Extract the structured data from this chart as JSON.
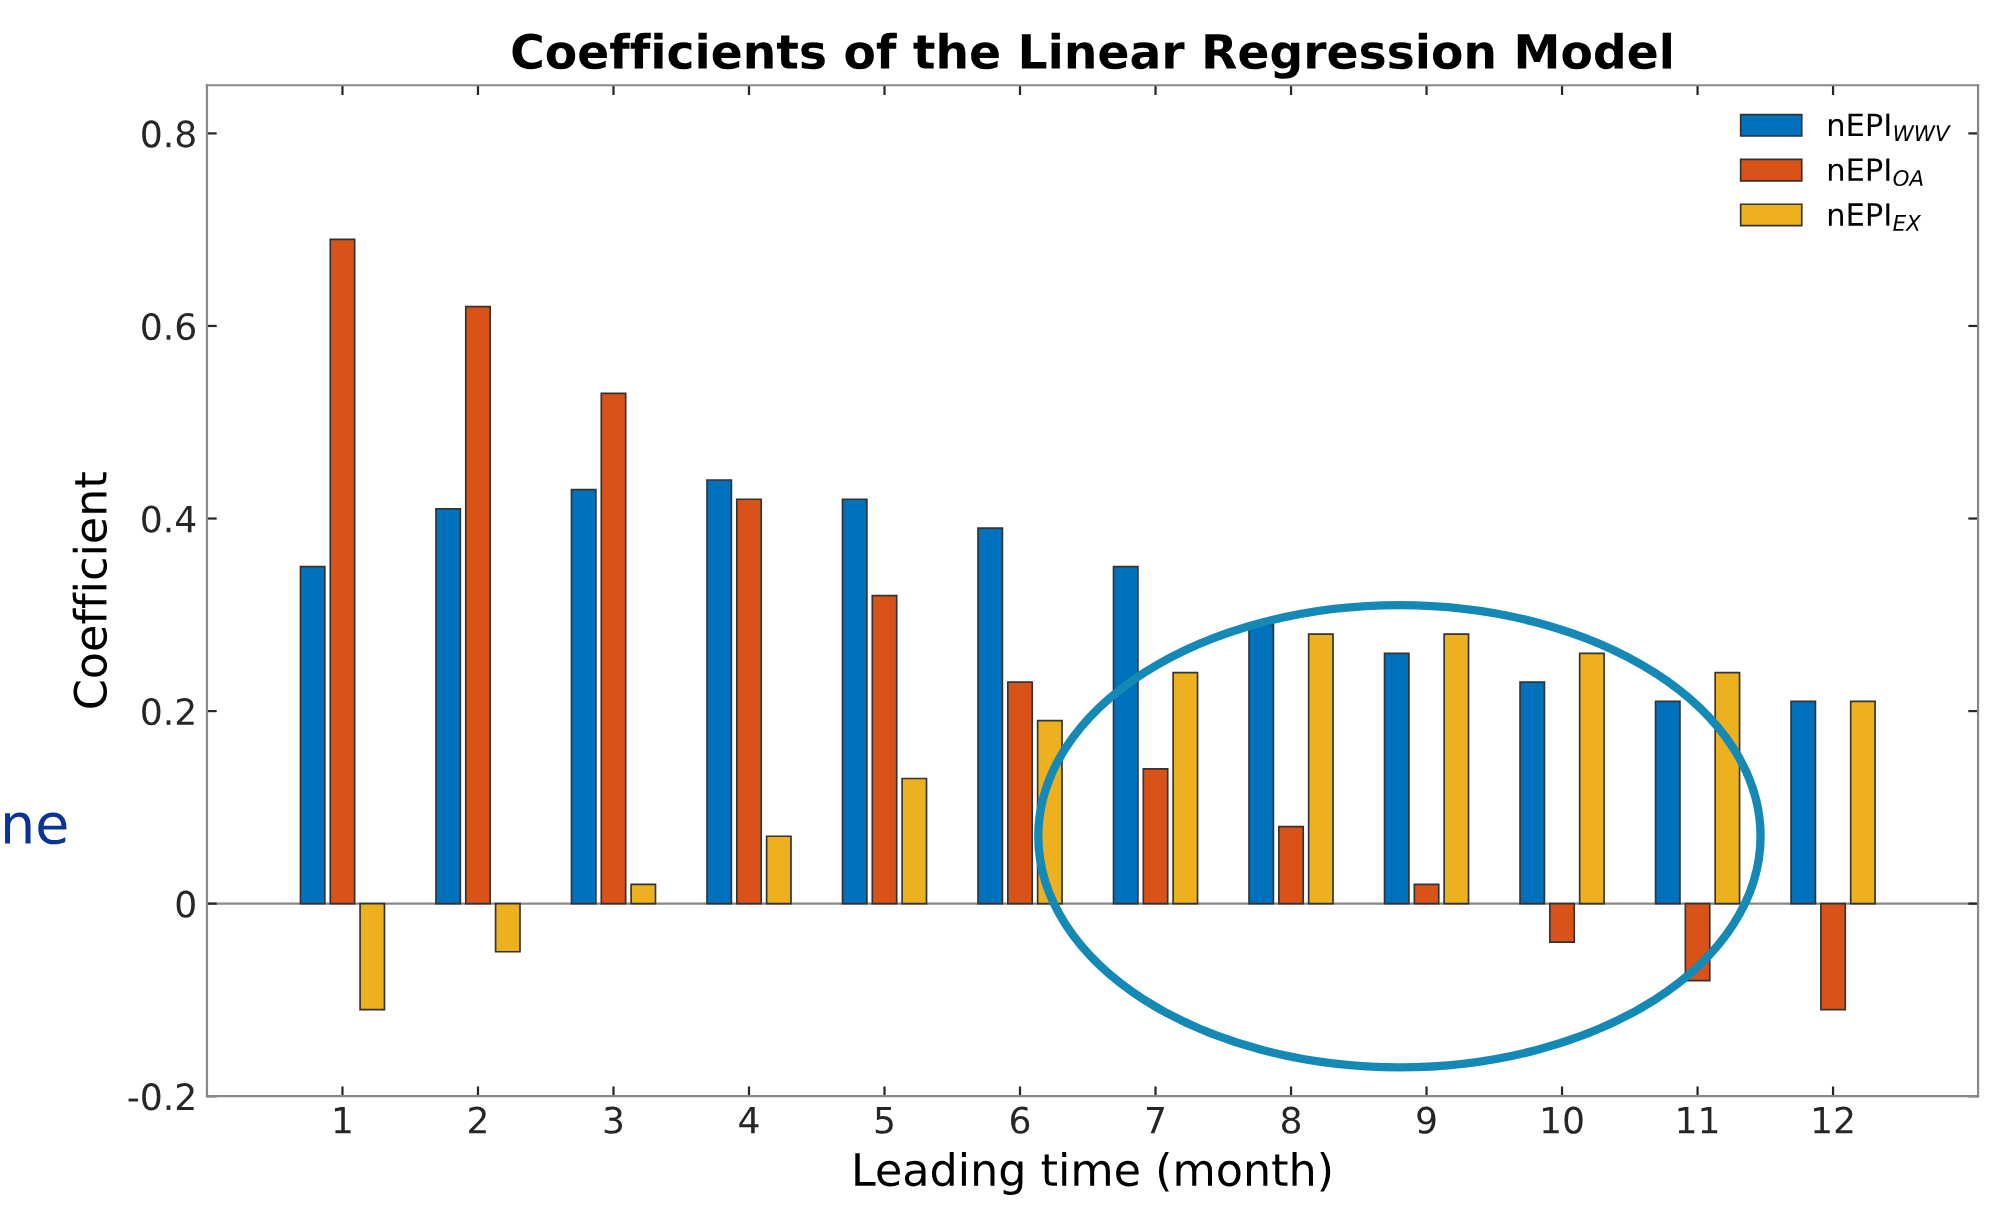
{
  "chart_data": {
    "type": "bar",
    "title": "Coefficients of the Linear Regression Model",
    "xlabel": "Leading time (month)",
    "ylabel": "Coefficient",
    "categories": [
      "1",
      "2",
      "3",
      "4",
      "5",
      "6",
      "7",
      "8",
      "9",
      "10",
      "11",
      "12"
    ],
    "series": [
      {
        "name": "nEPI$_{WWV}$",
        "color": "#0072bd",
        "values": [
          0.35,
          0.41,
          0.43,
          0.44,
          0.42,
          0.39,
          0.35,
          0.29,
          0.26,
          0.23,
          0.21,
          0.21
        ]
      },
      {
        "name": "nEPI$_{OA}$",
        "color": "#d95319",
        "values": [
          0.69,
          0.62,
          0.53,
          0.42,
          0.32,
          0.23,
          0.14,
          0.08,
          0.02,
          -0.04,
          -0.08,
          -0.11
        ]
      },
      {
        "name": "nEPI$_{EX}$",
        "color": "#edb120",
        "values": [
          -0.11,
          -0.05,
          0.02,
          0.07,
          0.13,
          0.19,
          0.24,
          0.28,
          0.28,
          0.26,
          0.24,
          0.21
        ]
      }
    ],
    "ylim": [
      -0.2,
      0.85
    ],
    "yticks": [
      -0.2,
      0,
      0.2,
      0.4,
      0.6,
      0.8
    ],
    "grid": false,
    "ref_lines": [
      {
        "axis": "y",
        "value": 0,
        "color": "#888888"
      }
    ],
    "legend": "top right",
    "annotations": [
      "ne"
    ]
  }
}
